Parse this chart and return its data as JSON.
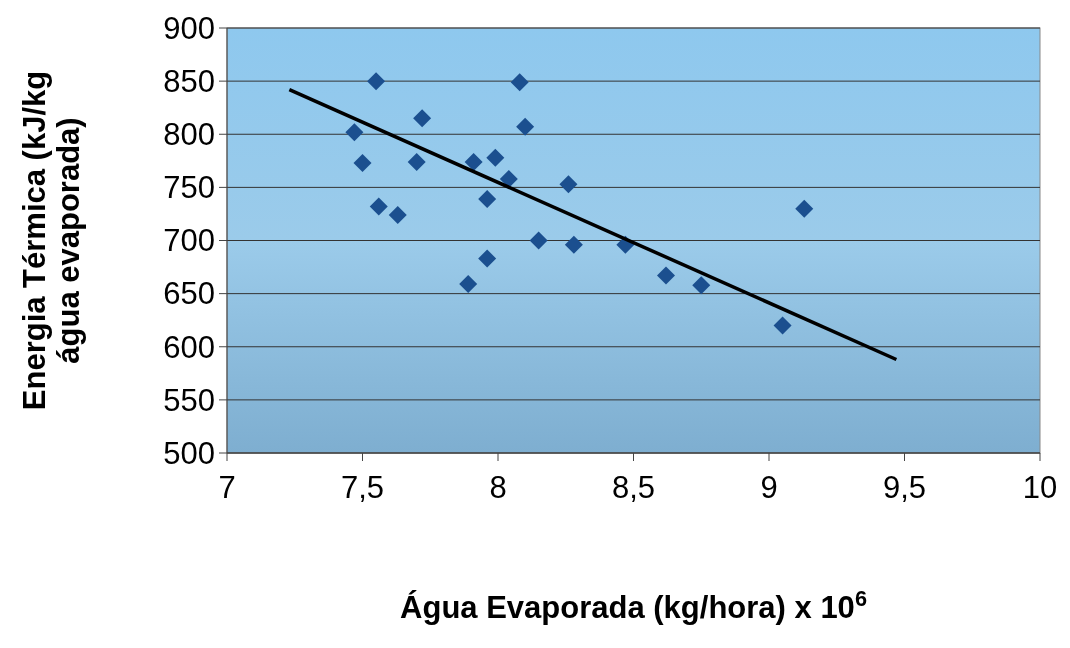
{
  "chart_data": {
    "type": "scatter",
    "xlabel": "Água Evaporada (kg/hora)   x 10$^{6}$",
    "ylabel": "Energia Térmica (kJ/kg água evaporada)",
    "xlim": [
      7,
      10
    ],
    "ylim": [
      500,
      900
    ],
    "xticks": [
      7,
      {
        "value": 7.5,
        "label": "7,5"
      },
      8,
      {
        "value": 8.5,
        "label": "8,5"
      },
      9,
      {
        "value": 9.5,
        "label": "9,5"
      },
      10
    ],
    "yticks": [
      500,
      550,
      600,
      650,
      700,
      750,
      800,
      850,
      900
    ],
    "grid": "y",
    "series": [
      {
        "color": "#1b4f8f",
        "marker": "diamond",
        "x": [
          7.55,
          7.47,
          7.5,
          7.56,
          7.63,
          7.72,
          7.7,
          7.91,
          7.99,
          8.04,
          7.96,
          7.96,
          7.89,
          8.08,
          8.1,
          8.15,
          8.26,
          8.28,
          8.47,
          8.62,
          8.75,
          9.05,
          9.13
        ],
        "values": [
          850,
          802,
          773,
          732,
          724,
          815,
          774,
          774,
          778,
          758,
          739,
          683,
          659,
          849,
          807,
          700,
          753,
          696,
          696,
          667,
          658,
          620,
          730
        ]
      },
      {
        "type": "line",
        "color": "#000000",
        "marker": "none",
        "line_style": "solid",
        "x": [
          7.23,
          9.47
        ],
        "values": [
          842,
          588
        ]
      }
    ]
  }
}
